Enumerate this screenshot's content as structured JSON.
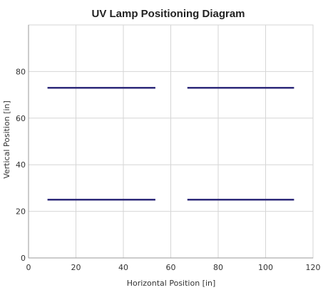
{
  "chart_data": {
    "type": "line",
    "title": "UV Lamp Positioning Diagram",
    "xlabel": "Horizontal Position [in]",
    "ylabel": "Vertical Position [in]",
    "xlim": [
      0,
      120
    ],
    "ylim": [
      0,
      100
    ],
    "xticks": [
      0,
      20,
      40,
      60,
      80,
      100,
      120
    ],
    "yticks": [
      0,
      20,
      40,
      60,
      80
    ],
    "grid": true,
    "line_color": "#2e2a7a",
    "series": [
      {
        "x": [
          8,
          53.5
        ],
        "y": [
          73,
          73
        ]
      },
      {
        "x": [
          67,
          112
        ],
        "y": [
          73,
          73
        ]
      },
      {
        "x": [
          8,
          53.5
        ],
        "y": [
          25,
          25
        ]
      },
      {
        "x": [
          67,
          112
        ],
        "y": [
          25,
          25
        ]
      }
    ]
  }
}
